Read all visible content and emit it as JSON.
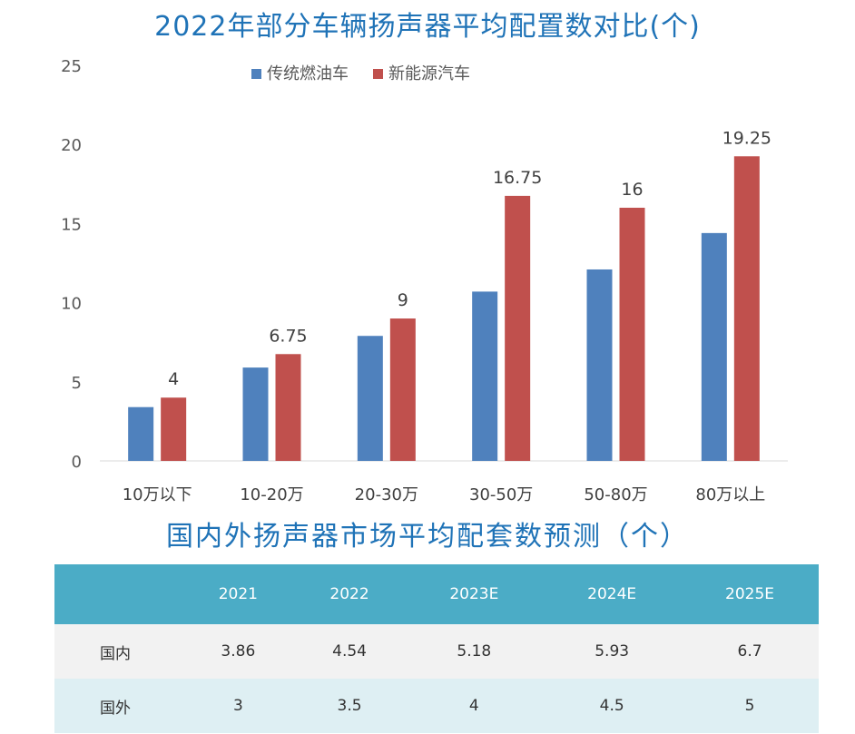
{
  "chart_data": {
    "type": "bar",
    "title": "2022年部分车辆扬声器平均配置数对比(个)",
    "categories": [
      "10万以下",
      "10-20万",
      "20-30万",
      "30-50万",
      "50-80万",
      "80万以上"
    ],
    "series": [
      {
        "name": "传统燃油车",
        "color": "#4f81bd",
        "values": [
          3.4,
          5.9,
          7.9,
          10.7,
          12.1,
          14.4
        ],
        "labels": [
          "",
          "",
          "",
          "",
          "",
          ""
        ]
      },
      {
        "name": "新能源汽车",
        "color": "#c0504d",
        "values": [
          4,
          6.75,
          9,
          16.75,
          16,
          19.25
        ],
        "labels": [
          "4",
          "6.75",
          "9",
          "16.75",
          "16",
          "19.25"
        ]
      }
    ],
    "ylim": [
      0,
      25
    ],
    "yticks": [
      "0",
      "5",
      "10",
      "15",
      "20",
      "25"
    ],
    "grid": false,
    "legend": "top-center"
  },
  "table": {
    "title": "国内外扬声器市场平均配套数预测（个）",
    "columns": [
      "",
      "2021",
      "2022",
      "2023E",
      "2024E",
      "2025E"
    ],
    "rows": [
      {
        "label": "国内",
        "values": [
          "3.86",
          "4.54",
          "5.18",
          "5.93",
          "6.7"
        ]
      },
      {
        "label": "国外",
        "values": [
          "3",
          "3.5",
          "4",
          "4.5",
          "5"
        ]
      }
    ]
  },
  "colors": {
    "header": "#4bacc6",
    "title": "#1f73b7"
  }
}
